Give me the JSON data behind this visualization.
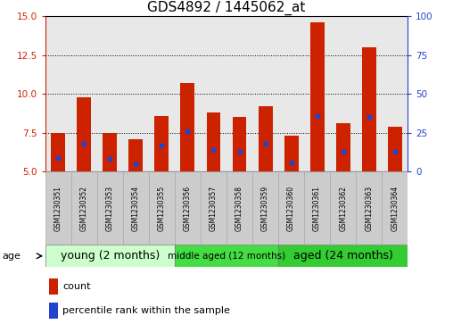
{
  "title": "GDS4892 / 1445062_at",
  "samples": [
    "GSM1230351",
    "GSM1230352",
    "GSM1230353",
    "GSM1230354",
    "GSM1230355",
    "GSM1230356",
    "GSM1230357",
    "GSM1230358",
    "GSM1230359",
    "GSM1230360",
    "GSM1230361",
    "GSM1230362",
    "GSM1230363",
    "GSM1230364"
  ],
  "count_values": [
    7.5,
    9.8,
    7.5,
    7.1,
    8.6,
    10.7,
    8.8,
    8.5,
    9.2,
    7.3,
    14.6,
    8.1,
    13.0,
    7.9
  ],
  "percentile_values": [
    5.9,
    6.8,
    5.8,
    5.5,
    6.7,
    7.6,
    6.4,
    6.3,
    6.8,
    5.6,
    8.6,
    6.3,
    8.5,
    6.3
  ],
  "ylim_left": [
    5,
    15
  ],
  "ylim_right": [
    0,
    100
  ],
  "yticks_left": [
    5,
    7.5,
    10,
    12.5,
    15
  ],
  "yticks_right": [
    0,
    25,
    50,
    75,
    100
  ],
  "groups": [
    {
      "label": "young (2 months)",
      "start": 0,
      "end": 5,
      "color": "#ccffcc"
    },
    {
      "label": "middle aged (12 months)",
      "start": 5,
      "end": 9,
      "color": "#44dd44"
    },
    {
      "label": "aged (24 months)",
      "start": 9,
      "end": 14,
      "color": "#33cc33"
    }
  ],
  "bar_color": "#cc2200",
  "percentile_color": "#2244cc",
  "bar_bottom": 5.0,
  "title_fontsize": 11,
  "tick_fontsize": 7.5,
  "group_fontsize_large": 9,
  "group_fontsize_small": 7.5,
  "bar_width": 0.55,
  "age_label": "age",
  "legend_count": "count",
  "legend_percentile": "percentile rank within the sample",
  "bg_color": "#e8e8e8",
  "sample_box_color": "#cccccc",
  "sample_box_edge": "#aaaaaa"
}
